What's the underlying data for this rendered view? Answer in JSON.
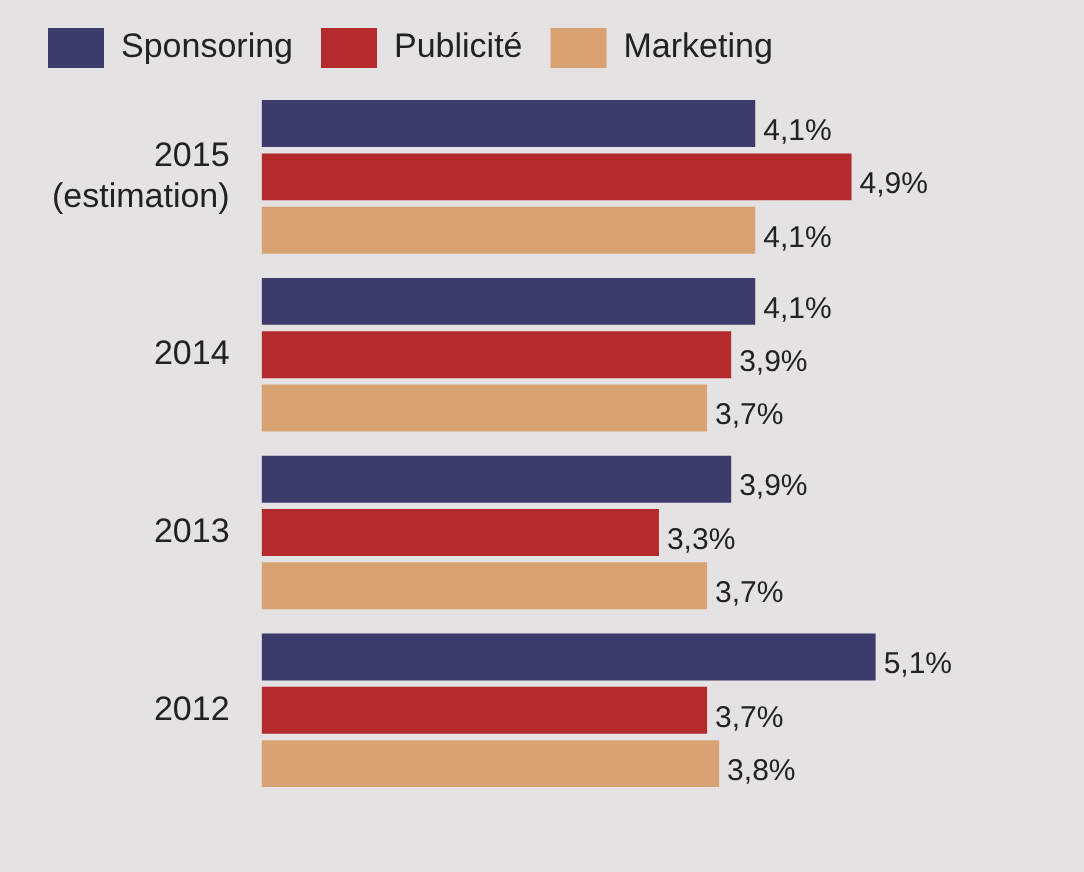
{
  "chart_data": {
    "type": "bar",
    "orientation": "horizontal",
    "categories": [
      "2015\n(estimation)",
      "2014",
      "2013",
      "2012"
    ],
    "series": [
      {
        "name": "Sponsoring",
        "color": "#3d3b6b",
        "values": [
          4.1,
          4.1,
          3.9,
          5.1
        ],
        "value_labels": [
          "4,1%",
          "4,1%",
          "3,9%",
          "5,1%"
        ]
      },
      {
        "name": "Publicité",
        "color": "#b52a2c",
        "values": [
          4.9,
          3.9,
          3.3,
          3.7
        ],
        "value_labels": [
          "4,9%",
          "3,9%",
          "3,3%",
          "3,7%"
        ]
      },
      {
        "name": "Marketing",
        "color": "#d9a273",
        "values": [
          4.1,
          3.7,
          3.7,
          3.8
        ],
        "value_labels": [
          "4,1%",
          "3,7%",
          "3,7%",
          "3,8%"
        ]
      }
    ],
    "grid": false,
    "legend": "top left"
  }
}
